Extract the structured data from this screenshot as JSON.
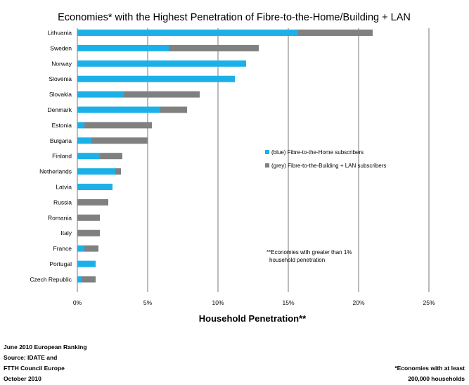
{
  "chart_data": {
    "type": "bar",
    "orientation": "horizontal",
    "stacked": true,
    "title": "Economies* with the Highest Penetration of Fibre-to-the-Home/Building + LAN",
    "xlabel": "Household Penetration**",
    "ylabel": "",
    "xlim": [
      0,
      25
    ],
    "x_ticks": [
      "0%",
      "5%",
      "10%",
      "15%",
      "20%",
      "25%"
    ],
    "x_tick_values": [
      0,
      5,
      10,
      15,
      20,
      25
    ],
    "grid": "vertical",
    "legend_position": "right-middle",
    "categories": [
      "Lithuania",
      "Sweden",
      "Norway",
      "Slovenia",
      "Slovakia",
      "Denmark",
      "Estonia",
      "Bulgaria",
      "Finland",
      "Netherlands",
      "Latvia",
      "Russia",
      "Romania",
      "Italy",
      "France",
      "Portugal",
      "Czech Republic"
    ],
    "series": [
      {
        "name": "(blue) Fibre-to-the-Home subscribers",
        "color": "#1cb0e8",
        "values": [
          15.7,
          6.5,
          12.0,
          11.2,
          3.3,
          5.9,
          0.5,
          1.0,
          1.6,
          2.7,
          2.5,
          0.0,
          0.0,
          0.0,
          0.5,
          1.3,
          0.3
        ]
      },
      {
        "name": "(grey) Fibre-to-the-Building + LAN subscribers",
        "color": "#808080",
        "values": [
          5.3,
          6.4,
          0.0,
          0.0,
          5.4,
          1.9,
          4.8,
          4.0,
          1.6,
          0.4,
          0.0,
          2.2,
          1.6,
          1.6,
          1.0,
          0.0,
          1.0
        ]
      }
    ],
    "annotations": [
      "**Economies with greater than 1%",
      "household penetration"
    ]
  },
  "footer": {
    "left_lines": [
      "June 2010 European Ranking",
      "Source: IDATE and",
      "FTTH Council Europe",
      "October 2010"
    ],
    "right_lines": [
      "*Economies with at least",
      "200,000 households"
    ]
  }
}
